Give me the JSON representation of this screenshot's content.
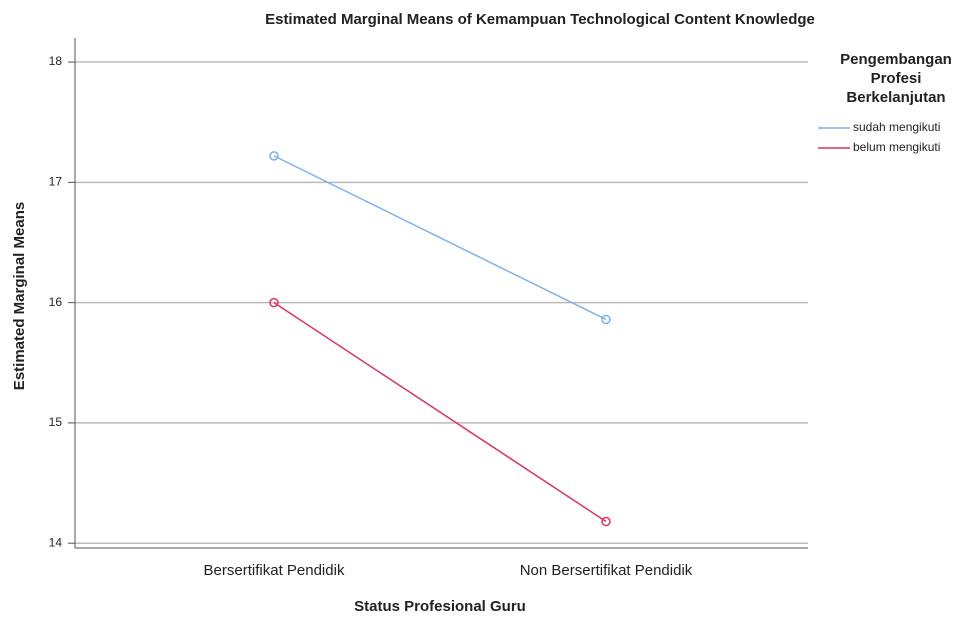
{
  "chart_data": {
    "type": "line",
    "title": "Estimated Marginal Means of Kemampuan Technological Content Knowledge",
    "x_label": "Status Profesional Guru",
    "y_label": "Estimated Marginal Means",
    "categories": [
      "Bersertifikat Pendidik",
      "Non Bersertifikat Pendidik"
    ],
    "legend_title": [
      "Pengembangan",
      "Profesi",
      "Berkelanjutan"
    ],
    "series": [
      {
        "name": "sudah mengikuti",
        "color": "#7fb0e8",
        "values": [
          17.22,
          15.86
        ]
      },
      {
        "name": "belum mengikuti",
        "color": "#d6375f",
        "values": [
          16.0,
          14.18
        ]
      }
    ],
    "ylim": [
      13.96,
      18.2
    ],
    "yticks": [
      14,
      15,
      16,
      17,
      18
    ],
    "grid": true,
    "legend": "right"
  }
}
